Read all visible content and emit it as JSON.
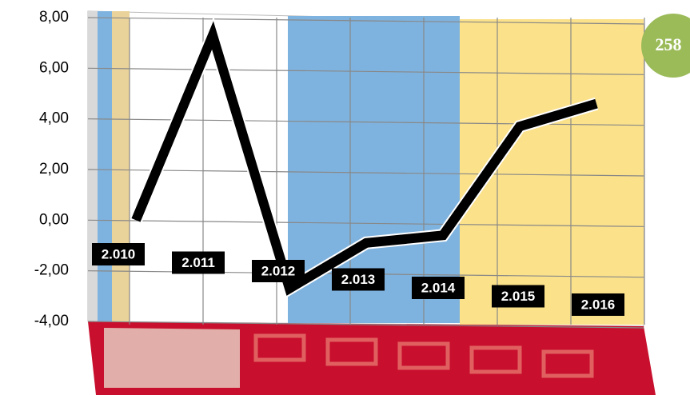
{
  "chart_data": {
    "type": "line",
    "categories": [
      "2.010",
      "2.011",
      "2.012",
      "2.013",
      "2.014",
      "2.015",
      "2.016"
    ],
    "series": [
      {
        "color": "#000000",
        "values": [
          0.0,
          7.3,
          -2.7,
          -0.9,
          -0.6,
          3.7,
          4.6
        ]
      }
    ],
    "ylim": [
      -4,
      8
    ],
    "yticks": [
      {
        "value": -4,
        "label": "-4,00"
      },
      {
        "value": -2,
        "label": "-2,00"
      },
      {
        "value": 0,
        "label": "0,00"
      },
      {
        "value": 2,
        "label": "2,00"
      },
      {
        "value": 4,
        "label": "4,00"
      },
      {
        "value": 6,
        "label": "6,00"
      },
      {
        "value": 8,
        "label": "8,00"
      }
    ],
    "grid": true,
    "annotation": "258"
  }
}
